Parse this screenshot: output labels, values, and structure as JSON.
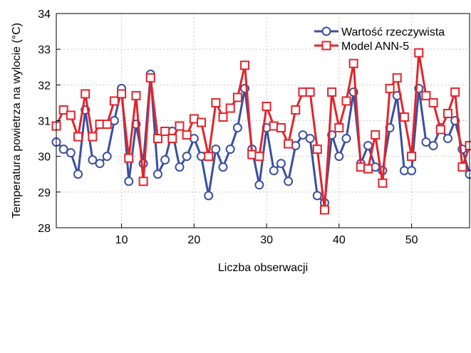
{
  "chart_data": {
    "type": "line",
    "xlabel": "Liczba obserwacji",
    "ylabel": "Temperatura powietrza na wylocie (°C)",
    "xlim": [
      1,
      58
    ],
    "ylim": [
      28,
      34
    ],
    "xticks": [
      10,
      20,
      30,
      40,
      50
    ],
    "yticks": [
      28,
      29,
      30,
      31,
      32,
      33,
      34
    ],
    "legend_position": "top-right",
    "series": [
      {
        "name": "Wartość rzeczywista",
        "color": "#3a4fa0",
        "marker": "circle",
        "x": [
          1,
          2,
          3,
          4,
          5,
          6,
          7,
          8,
          9,
          10,
          11,
          12,
          13,
          14,
          15,
          16,
          17,
          18,
          19,
          20,
          21,
          22,
          23,
          24,
          25,
          26,
          27,
          28,
          29,
          30,
          31,
          32,
          33,
          34,
          35,
          36,
          37,
          38,
          39,
          40,
          41,
          42,
          43,
          44,
          45,
          46,
          47,
          48,
          49,
          50,
          51,
          52,
          53,
          54,
          55,
          56,
          57,
          58
        ],
        "values": [
          30.4,
          30.2,
          30.1,
          29.5,
          31.3,
          29.9,
          29.8,
          30.0,
          31.0,
          31.9,
          29.3,
          30.9,
          29.8,
          32.3,
          29.5,
          29.9,
          30.7,
          29.7,
          30.0,
          30.5,
          30.0,
          28.9,
          30.2,
          29.7,
          30.2,
          30.8,
          31.9,
          30.2,
          29.2,
          30.8,
          29.6,
          29.8,
          29.3,
          30.3,
          30.6,
          30.5,
          28.9,
          28.7,
          30.6,
          30.0,
          30.5,
          31.8,
          29.8,
          30.3,
          29.7,
          29.6,
          30.8,
          31.7,
          29.6,
          29.6,
          31.9,
          30.4,
          30.3,
          30.8,
          30.5,
          31.0,
          30.2,
          29.5
        ]
      },
      {
        "name": "Model ANN-5",
        "color": "#e3242b",
        "marker": "square",
        "x": [
          1,
          2,
          3,
          4,
          5,
          6,
          7,
          8,
          9,
          10,
          11,
          12,
          13,
          14,
          15,
          16,
          17,
          18,
          19,
          20,
          21,
          22,
          23,
          24,
          25,
          26,
          27,
          28,
          29,
          30,
          31,
          32,
          33,
          34,
          35,
          36,
          37,
          38,
          39,
          40,
          41,
          42,
          43,
          44,
          45,
          46,
          47,
          48,
          49,
          50,
          51,
          52,
          53,
          54,
          55,
          56,
          57,
          58
        ],
        "values": [
          30.85,
          31.3,
          31.15,
          30.55,
          31.75,
          30.55,
          30.9,
          30.9,
          31.55,
          31.75,
          29.95,
          31.7,
          29.3,
          32.2,
          30.5,
          30.7,
          30.5,
          30.85,
          30.6,
          31.05,
          30.95,
          30.0,
          31.5,
          31.1,
          31.35,
          31.65,
          32.55,
          30.05,
          30.0,
          31.4,
          30.85,
          30.8,
          30.35,
          31.3,
          31.8,
          31.8,
          30.2,
          28.5,
          31.8,
          30.8,
          31.55,
          32.6,
          29.7,
          29.65,
          30.6,
          29.25,
          31.9,
          32.2,
          31.1,
          30.0,
          32.9,
          31.7,
          31.5,
          30.75,
          31.2,
          31.8,
          29.7,
          30.3
        ]
      }
    ]
  }
}
